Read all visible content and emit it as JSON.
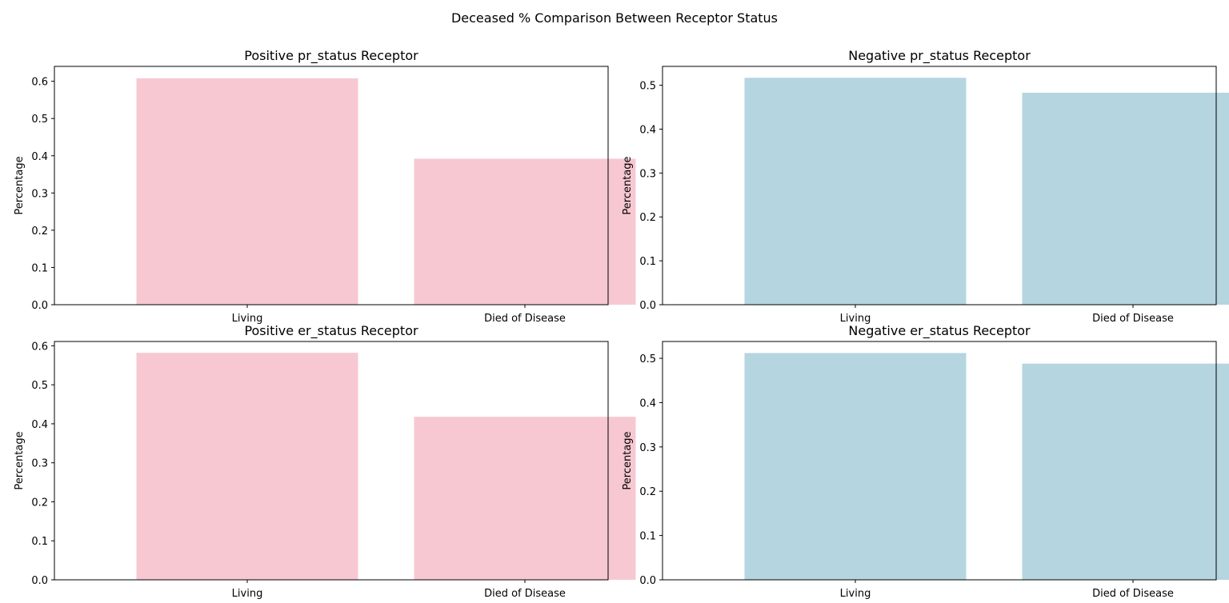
{
  "figure_title": "Deceased % Comparison Between Receptor Status",
  "chart_data": [
    {
      "type": "bar",
      "title": "Positive pr_status Receptor",
      "categories": [
        "Living",
        "Died of Disease"
      ],
      "values": [
        0.608,
        0.392
      ],
      "xlabel": "",
      "ylabel": "Percentage",
      "ylim": [
        0,
        0.64
      ],
      "yticks": [
        "0.0",
        "0.1",
        "0.2",
        "0.3",
        "0.4",
        "0.5",
        "0.6"
      ],
      "bar_color": "#f7c8d2",
      "grid": false,
      "legend": "none"
    },
    {
      "type": "bar",
      "title": "Negative pr_status Receptor",
      "categories": [
        "Living",
        "Died of Disease"
      ],
      "values": [
        0.517,
        0.483
      ],
      "xlabel": "",
      "ylabel": "Percentage",
      "ylim": [
        0,
        0.543
      ],
      "yticks": [
        "0.0",
        "0.1",
        "0.2",
        "0.3",
        "0.4",
        "0.5"
      ],
      "bar_color": "#b5d5e0",
      "grid": false,
      "legend": "none"
    },
    {
      "type": "bar",
      "title": "Positive er_status Receptor",
      "categories": [
        "Living",
        "Died of Disease"
      ],
      "values": [
        0.582,
        0.418
      ],
      "xlabel": "",
      "ylabel": "Percentage",
      "ylim": [
        0,
        0.611
      ],
      "yticks": [
        "0.0",
        "0.1",
        "0.2",
        "0.3",
        "0.4",
        "0.5",
        "0.6"
      ],
      "bar_color": "#f7c8d2",
      "grid": false,
      "legend": "none"
    },
    {
      "type": "bar",
      "title": "Negative er_status Receptor",
      "categories": [
        "Living",
        "Died of Disease"
      ],
      "values": [
        0.512,
        0.488
      ],
      "xlabel": "",
      "ylabel": "Percentage",
      "ylim": [
        0,
        0.538
      ],
      "yticks": [
        "0.0",
        "0.1",
        "0.2",
        "0.3",
        "0.4",
        "0.5"
      ],
      "bar_color": "#b5d5e0",
      "grid": false,
      "legend": "none"
    }
  ]
}
